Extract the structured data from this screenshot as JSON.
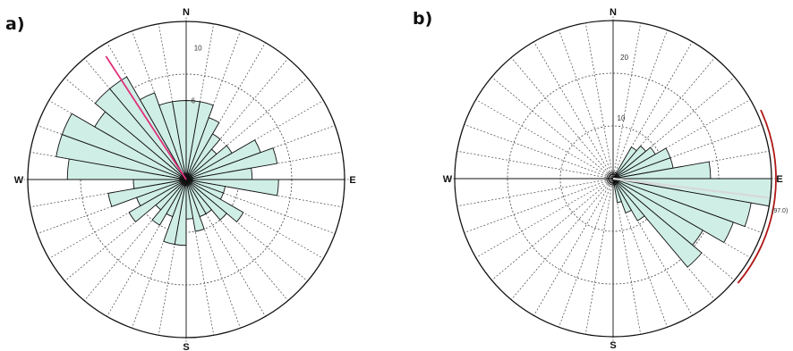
{
  "chart_data": [
    {
      "type": "rose",
      "panel_label": "a)",
      "cardinals": {
        "n": "N",
        "e": "E",
        "s": "S",
        "w": "W"
      },
      "sector_width_deg": 10,
      "radial_max": 12,
      "radial_ticks": [
        {
          "value": 6,
          "label": "6"
        },
        {
          "value": 10,
          "label": "10"
        }
      ],
      "grid": true,
      "fill_color": "#cfeee6",
      "mean_direction_deg": 327,
      "mean_color": "#e0307a",
      "values": [
        6,
        6,
        5,
        4,
        3,
        4,
        6,
        7,
        5,
        7,
        3,
        3,
        5,
        4,
        3,
        3,
        4,
        3,
        5,
        5,
        3,
        4,
        3,
        5,
        4,
        6,
        4,
        9,
        10,
        10,
        8,
        9,
        9,
        7,
        6,
        6
      ]
    },
    {
      "type": "rose",
      "panel_label": "b)",
      "cardinals": {
        "n": "N",
        "e": "E",
        "s": "S",
        "w": "W"
      },
      "sector_width_deg": 10,
      "radial_max": 26,
      "radial_ticks": [
        {
          "value": 10,
          "label": "10"
        },
        {
          "value": 20,
          "label": "20"
        }
      ],
      "grid": true,
      "fill_color": "#cfeee6",
      "mean_direction_deg": 97,
      "mean_label": "(97.0)",
      "mean_color": "#d8d8d8",
      "ci_arc_deg": [
        65,
        130
      ],
      "ci_color": "#b01818",
      "values": [
        0,
        0,
        0,
        6,
        7,
        8,
        10,
        10,
        16,
        26,
        23,
        21,
        17,
        19,
        8,
        6,
        4,
        0,
        0,
        0,
        0,
        0,
        0,
        0,
        0,
        0,
        0,
        0,
        0,
        0,
        0,
        0,
        0,
        0,
        0,
        0
      ]
    }
  ]
}
